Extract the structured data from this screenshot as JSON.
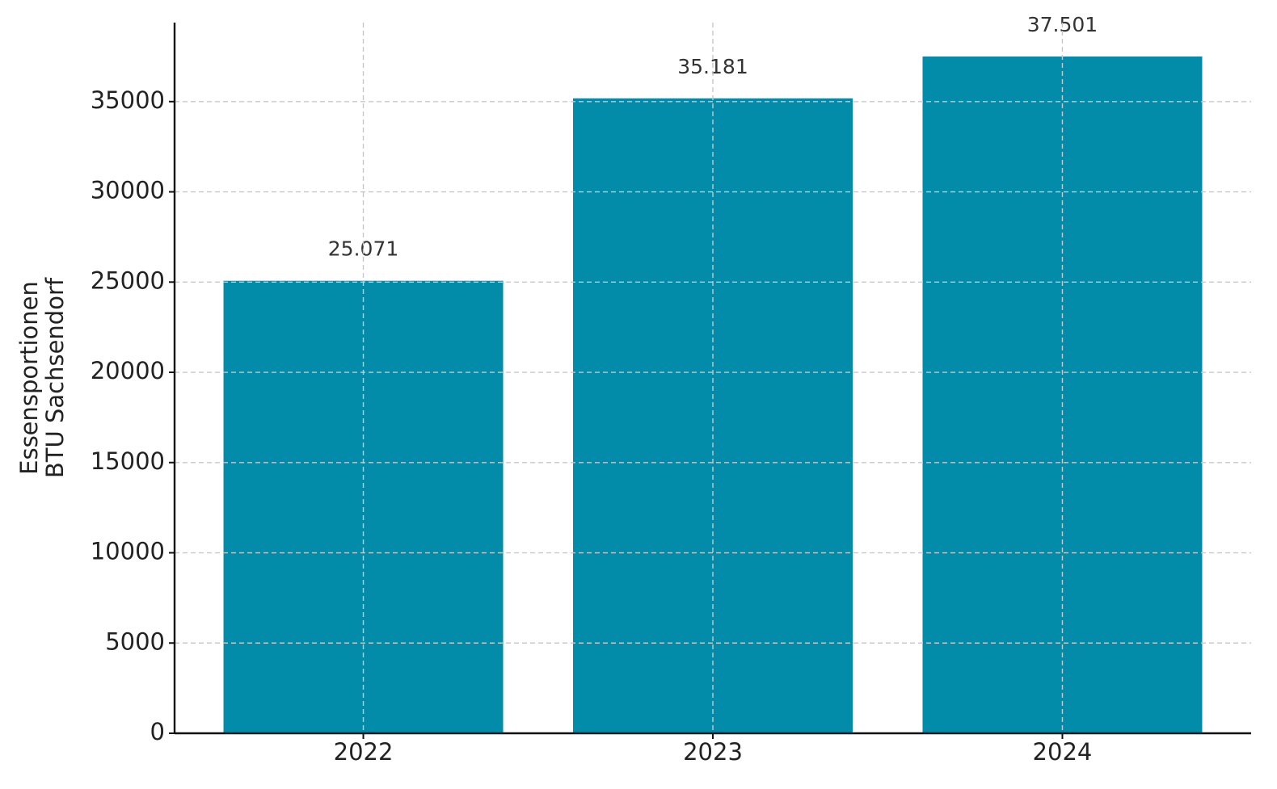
{
  "chart_data": {
    "type": "bar",
    "ylabel": [
      "Essensportionen",
      "BTU Sachsendorf"
    ],
    "categories": [
      "2022",
      "2023",
      "2024"
    ],
    "values": [
      25071,
      35181,
      37501
    ],
    "value_labels": [
      "25.071",
      "35.181",
      "37.501"
    ],
    "color": "#038caa",
    "ylim": [
      0,
      39376
    ],
    "yticks": [
      0,
      5000,
      10000,
      15000,
      20000,
      25000,
      30000,
      35000
    ],
    "grid": true
  }
}
